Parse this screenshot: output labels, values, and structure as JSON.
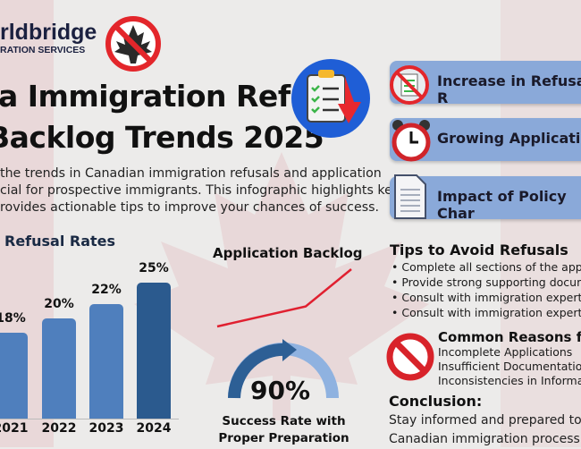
{
  "logo": {
    "name": "rldbridge",
    "tagline": "RATION SERVICES"
  },
  "title": {
    "line1": "a Immigration Refusal",
    "line2": "Backlog Trends 2025"
  },
  "intro": [
    "the trends in Canadian immigration refusals and application",
    "cial for prospective immigrants. This infographic highlights key",
    "rovides actionable tips to improve your chances of success."
  ],
  "banners": [
    {
      "label": "Increase in Refusal R",
      "icon": "no-checklist-icon"
    },
    {
      "label": "Growing Application",
      "icon": "alarm-clock-icon"
    },
    {
      "label": "Impact of Policy Char",
      "icon": "document-icon"
    }
  ],
  "colors": {
    "bar": "#4f7fbd",
    "bar_highlight": "#2b5a8e",
    "line": "#e02030",
    "banner": "#8aa9d9"
  },
  "chart_data": {
    "type": "bar",
    "title": "Refusal Rates",
    "categories": [
      "2021",
      "2022",
      "2023",
      "2024"
    ],
    "values": [
      18,
      20,
      22,
      25
    ],
    "labels": [
      "18%",
      "20%",
      "22%",
      "25%"
    ]
  },
  "backlog": {
    "title": "Application Backlog",
    "trend": [
      1,
      2,
      5
    ]
  },
  "gauge": {
    "value": "90%",
    "fraction": 0.9,
    "caption1": "Success Rate with",
    "caption2": "Proper Preparation"
  },
  "tips": {
    "title": "Tips to Avoid Refusals",
    "items": [
      "Complete all sections of the applic",
      "Provide strong supporting docume",
      "Consult with immigration experts",
      "Consult with immigration experts"
    ]
  },
  "reasons": {
    "title": "Common Reasons for",
    "items": [
      "Incomplete Applications",
      "Insufficient Documentation",
      "Inconsistencies in Informati"
    ]
  },
  "conclusion": {
    "title": "Conclusion:",
    "lines": [
      "Stay informed and prepared to n",
      "Canadian immigration process ef"
    ]
  }
}
